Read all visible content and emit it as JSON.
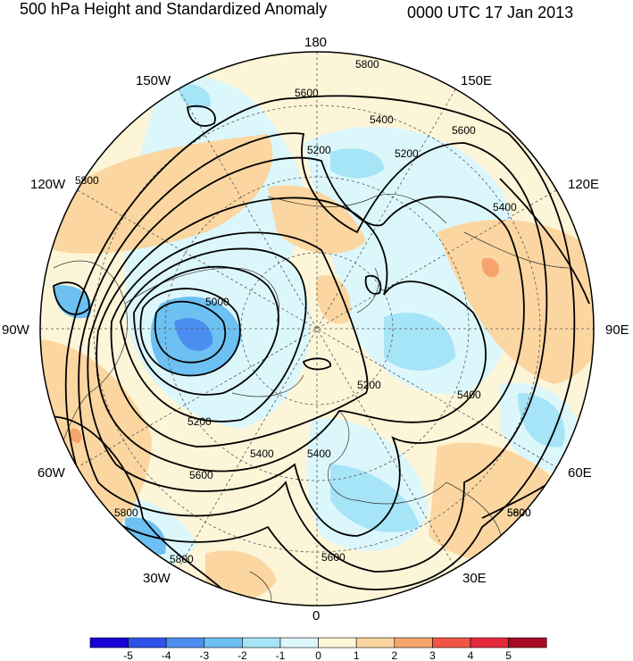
{
  "title": "500 hPa Height and Standardized Anomaly",
  "valid_time": "0000 UTC 17 Jan 2013",
  "longitude_labels": {
    "top": "180",
    "bottom": "0",
    "left": "90W",
    "right": "90E",
    "upper_left": "150W",
    "upper_right": "150E",
    "upper_left2": "120W",
    "upper_right2": "120E",
    "lower_left": "60W",
    "lower_right": "60E",
    "lower_left2": "30W",
    "lower_right2": "30E"
  },
  "contour_labels": [
    "5800",
    "5600",
    "5400",
    "5600",
    "5200",
    "5200",
    "5400",
    "5000",
    "5200",
    "5400",
    "5600",
    "5200",
    "5400",
    "5600",
    "5800",
    "5800",
    "5800",
    "5600",
    "5400",
    "5800"
  ],
  "colorbar": {
    "ticks": [
      "-5",
      "-4",
      "-3",
      "-2",
      "-1",
      "0",
      "1",
      "2",
      "3",
      "4",
      "5"
    ],
    "colors": [
      "#1b00d6",
      "#2f52ea",
      "#4c8ef0",
      "#6cc1f2",
      "#a6e4f7",
      "#dcf7fb",
      "#fdf5d8",
      "#fbd6a0",
      "#f7a46c",
      "#f15645",
      "#e4283a",
      "#a80a26"
    ]
  }
}
